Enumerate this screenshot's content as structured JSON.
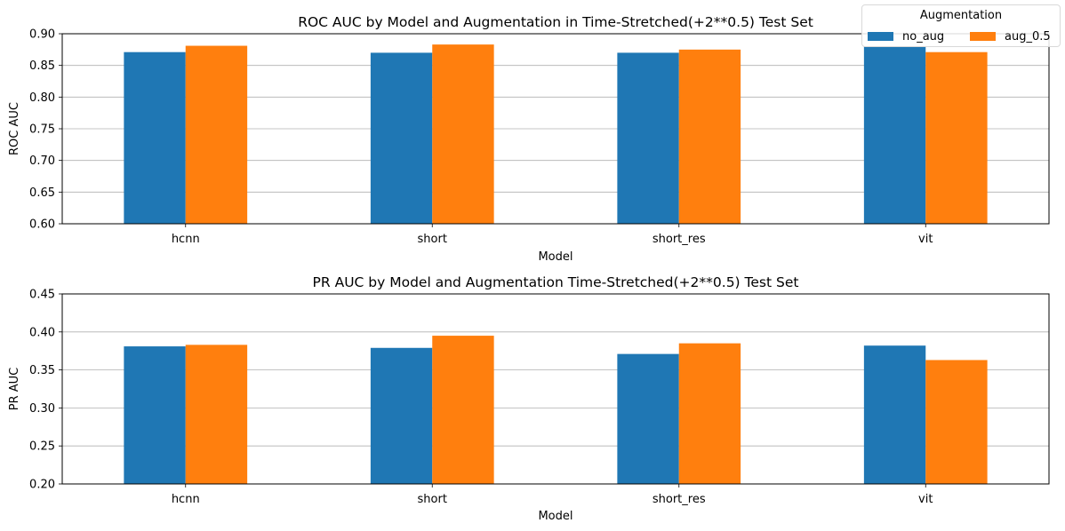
{
  "legend": {
    "title": "Augmentation",
    "entries": [
      {
        "label": "no_aug",
        "color": "#1f77b4"
      },
      {
        "label": "aug_0.5",
        "color": "#ff7f0e"
      }
    ]
  },
  "chart_data": [
    {
      "type": "bar",
      "title": "ROC AUC by Model and Augmentation in Time-Stretched(+2**0.5) Test Set",
      "xlabel": "Model",
      "ylabel": "ROC AUC",
      "categories": [
        "hcnn",
        "short",
        "short_res",
        "vit"
      ],
      "series": [
        {
          "name": "no_aug",
          "color": "#1f77b4",
          "values": [
            0.871,
            0.87,
            0.87,
            0.88
          ]
        },
        {
          "name": "aug_0.5",
          "color": "#ff7f0e",
          "values": [
            0.881,
            0.883,
            0.875,
            0.871
          ]
        }
      ],
      "ylim": [
        0.6,
        0.9
      ],
      "yticks": [
        "0.60",
        "0.65",
        "0.70",
        "0.75",
        "0.80",
        "0.85",
        "0.90"
      ],
      "grid": "y",
      "legend": "top-right"
    },
    {
      "type": "bar",
      "title": "PR AUC by Model and Augmentation Time-Stretched(+2**0.5) Test Set",
      "xlabel": "Model",
      "ylabel": "PR AUC",
      "categories": [
        "hcnn",
        "short",
        "short_res",
        "vit"
      ],
      "series": [
        {
          "name": "no_aug",
          "color": "#1f77b4",
          "values": [
            0.381,
            0.379,
            0.371,
            0.382
          ]
        },
        {
          "name": "aug_0.5",
          "color": "#ff7f0e",
          "values": [
            0.383,
            0.395,
            0.385,
            0.363
          ]
        }
      ],
      "ylim": [
        0.2,
        0.45
      ],
      "yticks": [
        "0.20",
        "0.25",
        "0.30",
        "0.35",
        "0.40",
        "0.45"
      ],
      "grid": "y",
      "legend": "none"
    }
  ]
}
